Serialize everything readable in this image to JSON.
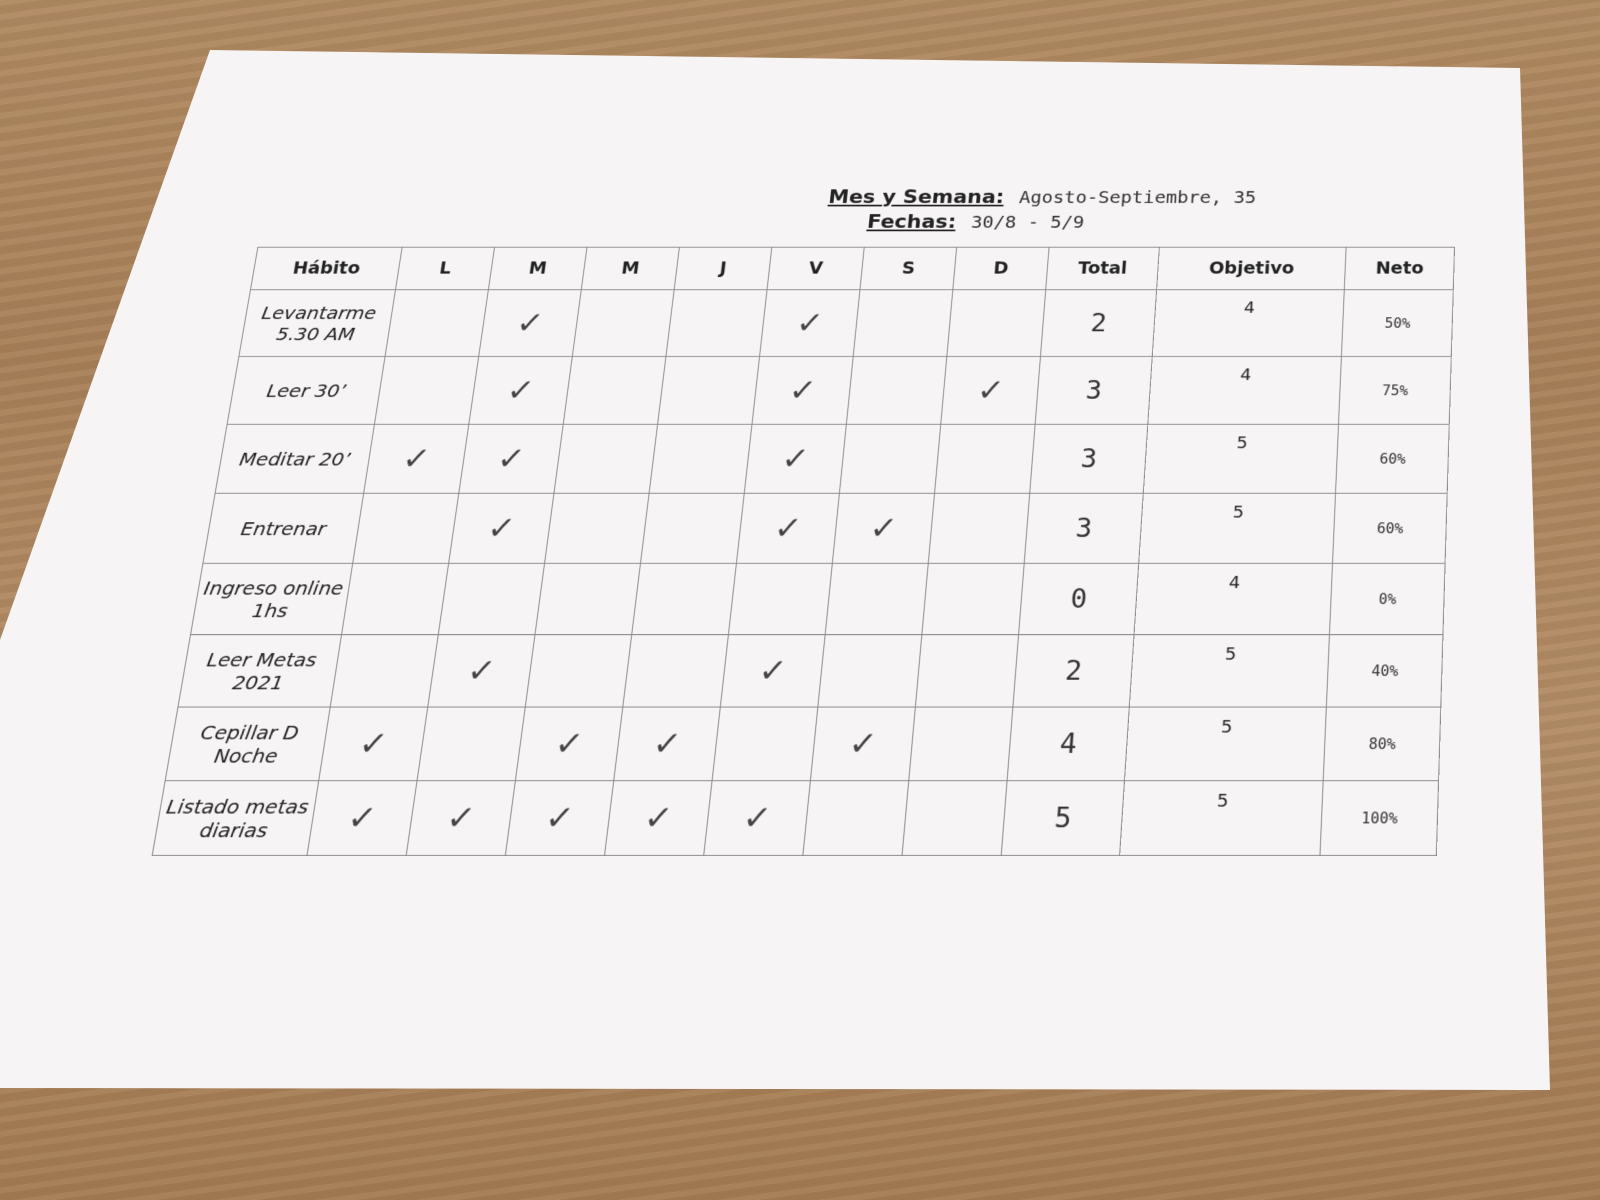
{
  "header": {
    "week_label": "Mes y Semana:",
    "week_value": "Agosto-Septiembre, 35",
    "dates_label": "Fechas:",
    "dates_value": "30/8 - 5/9"
  },
  "columns": [
    "Hábito",
    "L",
    "M",
    "M",
    "J",
    "V",
    "S",
    "D",
    "Total",
    "Objetivo",
    "Neto"
  ],
  "check_mark": "✓",
  "rows": [
    {
      "habit": "Levantarme 5.30 AM",
      "days": [
        false,
        true,
        false,
        false,
        true,
        false,
        false
      ],
      "total": "2",
      "objective": "4",
      "net": "50%"
    },
    {
      "habit": "Leer 30’",
      "days": [
        false,
        true,
        false,
        false,
        true,
        false,
        true
      ],
      "total": "3",
      "objective": "4",
      "net": "75%"
    },
    {
      "habit": "Meditar 20’",
      "days": [
        true,
        true,
        false,
        false,
        true,
        false,
        false
      ],
      "total": "3",
      "objective": "5",
      "net": "60%"
    },
    {
      "habit": "Entrenar",
      "days": [
        false,
        true,
        false,
        false,
        true,
        true,
        false
      ],
      "total": "3",
      "objective": "5",
      "net": "60%"
    },
    {
      "habit": "Ingreso online 1hs",
      "days": [
        false,
        false,
        false,
        false,
        false,
        false,
        false
      ],
      "total": "0",
      "objective": "4",
      "net": "0%"
    },
    {
      "habit": "Leer Metas 2021",
      "days": [
        false,
        true,
        false,
        false,
        true,
        false,
        false
      ],
      "total": "2",
      "objective": "5",
      "net": "40%"
    },
    {
      "habit": "Cepillar D Noche",
      "days": [
        true,
        false,
        true,
        true,
        false,
        true,
        false
      ],
      "total": "4",
      "objective": "5",
      "net": "80%"
    },
    {
      "habit": "Listado metas diarias",
      "days": [
        true,
        true,
        true,
        true,
        true,
        false,
        false
      ],
      "total": "5",
      "objective": "5",
      "net": "100%"
    }
  ]
}
